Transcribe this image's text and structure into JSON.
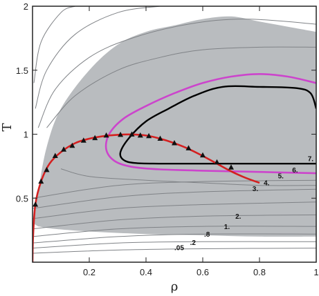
{
  "chart_data": {
    "type": "contour",
    "xlabel": "ρ",
    "ylabel": "T",
    "xlim": [
      0,
      1
    ],
    "ylim": [
      0,
      2
    ],
    "x_ticks": [
      {
        "value": 0.2,
        "label": "0.2"
      },
      {
        "value": 0.4,
        "label": "0.4"
      },
      {
        "value": 0.6,
        "label": "0.6"
      },
      {
        "value": 0.8,
        "label": "0.8"
      },
      {
        "value": 1.0,
        "label": "1"
      }
    ],
    "y_ticks": [
      {
        "value": 0.5,
        "label": "0.5"
      },
      {
        "value": 1.0,
        "label": "1"
      },
      {
        "value": 1.5,
        "label": "1.5"
      },
      {
        "value": 2.0,
        "label": "2"
      }
    ],
    "grid": false,
    "colors": {
      "shaded_region": "#b9bcbf",
      "coexistence_curve": "#d42020",
      "markers": "#111111",
      "highlight_contour": "#cc44cc",
      "level7_contour": "#000000",
      "thin_contour": "#7f8286"
    },
    "contour_level_labels": [
      {
        "label": ".05",
        "rho": 0.5,
        "T": 0.095
      },
      {
        "label": ".2",
        "rho": 0.555,
        "T": 0.135
      },
      {
        "label": ".8",
        "rho": 0.605,
        "T": 0.2
      },
      {
        "label": "1.",
        "rho": 0.675,
        "T": 0.26
      },
      {
        "label": "2.",
        "rho": 0.715,
        "T": 0.34
      },
      {
        "label": "3.",
        "rho": 0.775,
        "T": 0.555
      },
      {
        "label": "4.",
        "rho": 0.815,
        "T": 0.6
      },
      {
        "label": "5.",
        "rho": 0.865,
        "T": 0.655
      },
      {
        "label": "6.",
        "rho": 0.915,
        "T": 0.7
      },
      {
        "label": "7.",
        "rho": 0.97,
        "T": 0.79
      }
    ],
    "series": [
      {
        "type": "line",
        "role": "coexistence_curve",
        "x": [
          0.0,
          0.002,
          0.01,
          0.03,
          0.06,
          0.1,
          0.15,
          0.2,
          0.25,
          0.3,
          0.35,
          0.4,
          0.45,
          0.5,
          0.55,
          0.6,
          0.65,
          0.7,
          0.75,
          0.8
        ],
        "y": [
          0.0,
          0.2,
          0.45,
          0.63,
          0.77,
          0.86,
          0.93,
          0.965,
          0.985,
          0.995,
          0.998,
          0.99,
          0.965,
          0.93,
          0.885,
          0.83,
          0.77,
          0.71,
          0.66,
          0.62
        ]
      },
      {
        "type": "scatter",
        "role": "markers",
        "x": [
          0.01,
          0.03,
          0.05,
          0.08,
          0.11,
          0.14,
          0.18,
          0.22,
          0.26,
          0.31,
          0.35,
          0.38,
          0.41,
          0.45,
          0.5,
          0.55,
          0.6,
          0.65,
          0.7
        ],
        "y": [
          0.45,
          0.63,
          0.72,
          0.83,
          0.88,
          0.91,
          0.95,
          0.97,
          0.99,
          0.995,
          0.998,
          0.99,
          0.985,
          0.965,
          0.93,
          0.89,
          0.835,
          0.78,
          0.74
        ]
      }
    ],
    "regions": {
      "shaded_upper": [
        [
          0.005,
          0.3
        ],
        [
          0.02,
          0.55
        ],
        [
          0.05,
          0.9
        ],
        [
          0.1,
          1.2
        ],
        [
          0.2,
          1.5
        ],
        [
          0.3,
          1.7
        ],
        [
          0.4,
          1.8
        ],
        [
          0.5,
          1.85
        ],
        [
          0.6,
          1.9
        ],
        [
          0.7,
          1.92
        ],
        [
          0.8,
          1.88
        ],
        [
          0.9,
          1.84
        ],
        [
          1.0,
          1.8
        ]
      ],
      "shaded_lower": [
        [
          1.0,
          0.2
        ],
        [
          0.8,
          0.2
        ],
        [
          0.6,
          0.21
        ],
        [
          0.4,
          0.22
        ],
        [
          0.2,
          0.24
        ],
        [
          0.08,
          0.26
        ],
        [
          0.02,
          0.28
        ]
      ],
      "level6_contour": [
        [
          1.0,
          1.4
        ],
        [
          0.9,
          1.45
        ],
        [
          0.8,
          1.47
        ],
        [
          0.7,
          1.45
        ],
        [
          0.6,
          1.4
        ],
        [
          0.5,
          1.32
        ],
        [
          0.4,
          1.22
        ],
        [
          0.32,
          1.12
        ],
        [
          0.27,
          1.0
        ],
        [
          0.26,
          0.88
        ],
        [
          0.29,
          0.79
        ],
        [
          0.35,
          0.745
        ],
        [
          0.45,
          0.725
        ],
        [
          0.6,
          0.715
        ],
        [
          0.8,
          0.705
        ],
        [
          1.0,
          0.695
        ]
      ],
      "level7_contour": [
        [
          1.0,
          1.2
        ],
        [
          0.98,
          1.32
        ],
        [
          0.93,
          1.36
        ],
        [
          0.8,
          1.37
        ],
        [
          0.67,
          1.37
        ],
        [
          0.57,
          1.3
        ],
        [
          0.48,
          1.2
        ],
        [
          0.4,
          1.1
        ],
        [
          0.34,
          0.97
        ],
        [
          0.31,
          0.86
        ],
        [
          0.32,
          0.8
        ],
        [
          0.36,
          0.775
        ],
        [
          0.45,
          0.77
        ],
        [
          0.6,
          0.77
        ],
        [
          0.8,
          0.77
        ],
        [
          1.0,
          0.77
        ]
      ]
    },
    "background_contours": [
      [
        [
          0.0,
          0.2
        ],
        [
          0.3,
          0.26
        ],
        [
          0.6,
          0.28
        ],
        [
          1.0,
          0.28
        ]
      ],
      [
        [
          0.0,
          0.26
        ],
        [
          0.3,
          0.33
        ],
        [
          0.6,
          0.36
        ],
        [
          1.0,
          0.37
        ]
      ],
      [
        [
          0.0,
          0.34
        ],
        [
          0.3,
          0.42
        ],
        [
          0.6,
          0.45
        ],
        [
          1.0,
          0.47
        ]
      ],
      [
        [
          0.0,
          0.42
        ],
        [
          0.3,
          0.51
        ],
        [
          0.6,
          0.55
        ],
        [
          1.0,
          0.57
        ]
      ],
      [
        [
          0.0,
          0.5
        ],
        [
          0.3,
          0.6
        ],
        [
          0.6,
          0.63
        ],
        [
          1.0,
          0.64
        ]
      ],
      [
        [
          0.1,
          0.73
        ],
        [
          0.2,
          0.67
        ],
        [
          0.4,
          0.64
        ],
        [
          0.6,
          0.62
        ],
        [
          0.8,
          0.6
        ],
        [
          1.0,
          0.6
        ]
      ],
      [
        [
          0.05,
          1.05
        ],
        [
          0.15,
          1.3
        ],
        [
          0.3,
          1.5
        ],
        [
          0.45,
          1.6
        ],
        [
          0.6,
          1.66
        ],
        [
          0.8,
          1.68
        ],
        [
          1.0,
          1.68
        ]
      ],
      [
        [
          0.02,
          1.05
        ],
        [
          0.08,
          1.35
        ],
        [
          0.2,
          1.6
        ],
        [
          0.35,
          1.75
        ],
        [
          0.55,
          1.86
        ],
        [
          0.75,
          1.9
        ],
        [
          1.0,
          1.86
        ]
      ],
      [
        [
          0.01,
          1.2
        ],
        [
          0.05,
          1.5
        ],
        [
          0.15,
          1.78
        ],
        [
          0.3,
          1.95
        ],
        [
          0.45,
          2.0
        ]
      ],
      [
        [
          0.005,
          1.4
        ],
        [
          0.03,
          1.72
        ],
        [
          0.1,
          1.95
        ],
        [
          0.15,
          2.0
        ]
      ],
      [
        [
          0.0,
          0.15
        ],
        [
          0.3,
          0.2
        ],
        [
          0.6,
          0.22
        ],
        [
          1.0,
          0.22
        ]
      ],
      [
        [
          0.0,
          0.11
        ],
        [
          0.3,
          0.15
        ],
        [
          0.6,
          0.16
        ],
        [
          1.0,
          0.16
        ]
      ],
      [
        [
          0.0,
          0.07
        ],
        [
          0.3,
          0.095
        ],
        [
          0.6,
          0.105
        ],
        [
          1.0,
          0.11
        ]
      ]
    ]
  }
}
